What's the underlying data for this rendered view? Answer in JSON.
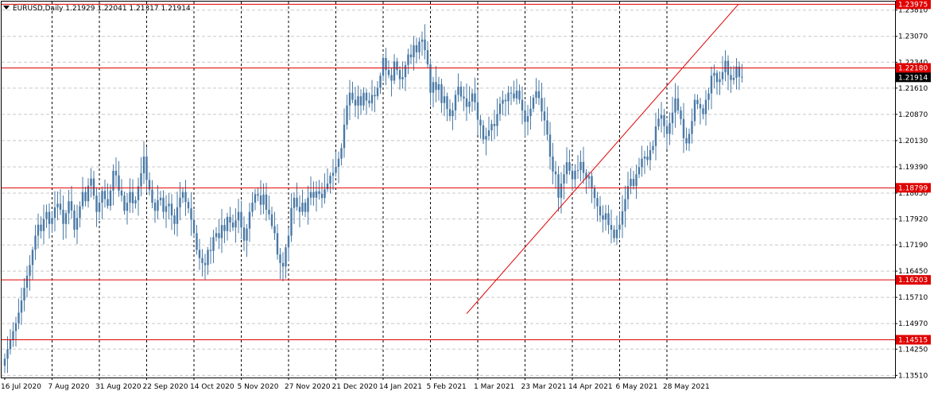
{
  "header": {
    "title": "EURUSD,Daily  1.21929 1.22041 1.21317 1.21914",
    "menu_icon": "triangle-down-icon"
  },
  "colors": {
    "background": "#ffffff",
    "candle": "#4a79a6",
    "level_line": "#e00000",
    "trendline": "#e00000",
    "price_tag_bg": "#000000",
    "price_tag_text": "#ffffff",
    "level_tag_bg": "#e00000",
    "level_tag_text": "#ffffff"
  },
  "chart_data": {
    "type": "candlestick",
    "symbol": "EURUSD",
    "timeframe": "Daily",
    "ohlc_header": {
      "open": 1.21929,
      "high": 1.22041,
      "low": 1.21317,
      "close": 1.21914
    },
    "ylim": [
      1.1345,
      1.2405
    ],
    "y_ticks": [
      "1.23810",
      "1.23070",
      "1.22340",
      "1.21610",
      "1.20870",
      "1.20130",
      "1.19390",
      "1.18650",
      "1.17920",
      "1.17190",
      "1.16450",
      "1.15710",
      "1.14970",
      "1.14250",
      "1.13510"
    ],
    "x_labels": [
      "16 Jul 2020",
      "7 Aug 2020",
      "31 Aug 2020",
      "22 Sep 2020",
      "14 Oct 2020",
      "5 Nov 2020",
      "27 Nov 2020",
      "21 Dec 2020",
      "14 Jan 2021",
      "5 Feb 2021",
      "1 Mar 2021",
      "23 Mar 2021",
      "14 Apr 2021",
      "6 May 2021",
      "28 May 2021"
    ],
    "horizontal_levels": [
      {
        "label": "1.23975",
        "value": 1.23975
      },
      {
        "label": "1.22180",
        "value": 1.2218
      },
      {
        "label": "1.18799",
        "value": 1.18799
      },
      {
        "label": "1.16203",
        "value": 1.16203
      },
      {
        "label": "1.14515",
        "value": 1.14515
      }
    ],
    "current_price": {
      "label": "1.21914",
      "value": 1.21914
    },
    "trendline": {
      "start": {
        "date": "1 Mar 2021",
        "price": 1.1525
      },
      "end": {
        "date": "28 May 2021",
        "price": 1.23975
      }
    },
    "closes": [
      1.1398,
      1.1425,
      1.1452,
      1.1476,
      1.1498,
      1.1528,
      1.1562,
      1.1598,
      1.1632,
      1.1662,
      1.1705,
      1.1745,
      1.1776,
      1.1758,
      1.1792,
      1.1812,
      1.1778,
      1.1795,
      1.1825,
      1.1835,
      1.1818,
      1.1778,
      1.1808,
      1.1842,
      1.1816,
      1.1762,
      1.1795,
      1.1828,
      1.1868,
      1.1842,
      1.1886,
      1.1906,
      1.1858,
      1.1812,
      1.1838,
      1.1871,
      1.1848,
      1.1829,
      1.1872,
      1.1928,
      1.1915,
      1.1872,
      1.1858,
      1.1815,
      1.1838,
      1.1868,
      1.1836,
      1.1845,
      1.1884,
      1.1921,
      1.1968,
      1.1902,
      1.1875,
      1.1838,
      1.1815,
      1.1845,
      1.1852,
      1.1812,
      1.1828,
      1.1835,
      1.1802,
      1.1778,
      1.1825,
      1.1852,
      1.1868,
      1.184,
      1.1822,
      1.179,
      1.1752,
      1.1705,
      1.1682,
      1.1668,
      1.1662,
      1.1705,
      1.1702,
      1.1741,
      1.1752,
      1.1738,
      1.1775,
      1.1758,
      1.1798,
      1.1782,
      1.1768,
      1.1788,
      1.1812,
      1.1768,
      1.1731,
      1.1765,
      1.1812,
      1.1838,
      1.1862,
      1.1858,
      1.1832,
      1.1861,
      1.1818,
      1.1805,
      1.1772,
      1.1752,
      1.1692,
      1.1668,
      1.1658,
      1.1712,
      1.1745,
      1.1823,
      1.1852,
      1.1826,
      1.1812,
      1.1838,
      1.1812,
      1.1852,
      1.1868,
      1.1852,
      1.187,
      1.1863,
      1.1851,
      1.1876,
      1.1892,
      1.1914,
      1.1922,
      1.1939,
      1.1962,
      1.1992,
      1.2058,
      1.2112,
      1.2148,
      1.2128,
      1.2112,
      1.2138,
      1.2112,
      1.2148,
      1.2126,
      1.2118,
      1.2142,
      1.2138,
      1.2162,
      1.2196,
      1.2246,
      1.2212,
      1.2198,
      1.2182,
      1.2236,
      1.2212,
      1.2186,
      1.2192,
      1.2226,
      1.2256,
      1.2248,
      1.2282,
      1.2262,
      1.2292,
      1.2298,
      1.2268,
      1.2228,
      1.2148,
      1.2178,
      1.2156,
      1.2172,
      1.2119,
      1.2138,
      1.2102,
      1.2082,
      1.2098,
      1.2142,
      1.2165,
      1.2137,
      1.2132,
      1.2108,
      1.2123,
      1.2146,
      1.2121,
      1.2072,
      1.2056,
      1.2016,
      1.2026,
      1.2042,
      1.206,
      1.2054,
      1.2088,
      1.2117,
      1.2128,
      1.2124,
      1.2148,
      1.2146,
      1.2132,
      1.2154,
      1.2128,
      1.2098,
      1.2066,
      1.2082,
      1.2103,
      1.2134,
      1.2152,
      1.2133,
      1.2095,
      1.207,
      1.203,
      1.1968,
      1.1926,
      1.1918,
      1.1852,
      1.1892,
      1.1918,
      1.1952,
      1.1928,
      1.1904,
      1.1928,
      1.193,
      1.1953,
      1.1922,
      1.1906,
      1.1913,
      1.1878,
      1.1851,
      1.1828,
      1.1802,
      1.179,
      1.1808,
      1.1775,
      1.1762,
      1.1738,
      1.1762,
      1.1776,
      1.1814,
      1.1848,
      1.1885,
      1.1905,
      1.1885,
      1.1918,
      1.1938,
      1.1962,
      1.1968,
      1.1958,
      1.1986,
      1.1998,
      1.2053,
      1.2075,
      1.2085,
      1.2054,
      1.2032,
      1.2062,
      1.2092,
      1.2132,
      1.2098,
      1.2074,
      1.202,
      1.2005,
      1.2032,
      1.2068,
      1.2128,
      1.2116,
      1.2104,
      1.2088,
      1.2128,
      1.2146,
      1.2196,
      1.2204,
      1.2178,
      1.2186,
      1.2206,
      1.2238,
      1.2198,
      1.2184,
      1.219,
      1.2222,
      1.2193,
      1.2191
    ]
  }
}
